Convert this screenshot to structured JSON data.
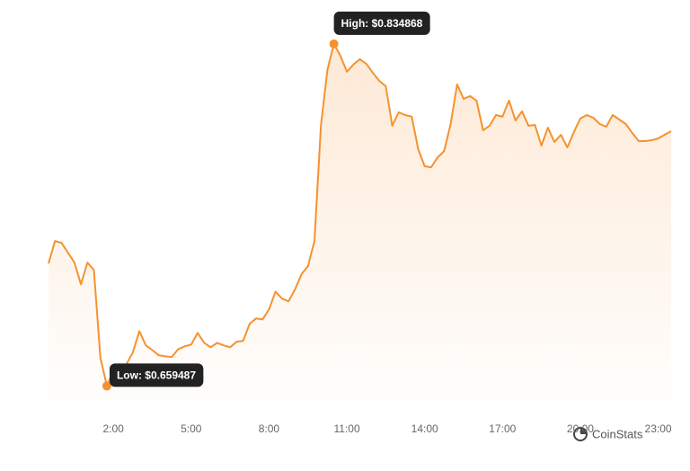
{
  "chart_data": {
    "type": "area-line",
    "color": "#f5922f",
    "x": [
      -0.5,
      -0.25,
      0,
      0.25,
      0.5,
      0.75,
      1,
      1.25,
      1.5,
      1.75,
      2,
      2.25,
      2.5,
      2.75,
      3,
      3.25,
      3.5,
      3.75,
      4,
      4.25,
      4.5,
      4.75,
      5,
      5.25,
      5.5,
      5.75,
      6,
      6.25,
      6.5,
      6.75,
      7,
      7.25,
      7.5,
      7.75,
      8,
      8.25,
      8.5,
      8.75,
      9,
      9.25,
      9.5,
      9.75,
      10,
      10.25,
      10.5,
      10.75,
      11,
      11.25,
      11.5,
      11.75,
      12,
      12.25,
      12.5,
      12.75,
      13,
      13.25,
      13.5,
      13.75,
      14,
      14.25,
      14.5,
      14.75,
      15,
      15.25,
      15.5,
      15.75,
      16,
      16.25,
      16.5,
      16.75,
      17,
      17.25,
      17.5,
      17.75,
      18,
      18.25,
      18.5,
      18.75,
      19,
      19.25,
      19.5,
      19.75,
      20,
      20.25,
      20.5,
      20.75,
      21,
      21.25,
      21.5,
      21.75,
      22,
      22.25,
      22.5,
      22.75,
      23,
      23.25,
      23.5
    ],
    "values": [
      0.7223,
      0.7338,
      0.7329,
      0.7278,
      0.7227,
      0.7116,
      0.7227,
      0.719,
      0.6738,
      0.659487,
      0.6673,
      0.6687,
      0.6706,
      0.6766,
      0.6876,
      0.6803,
      0.6779,
      0.6752,
      0.6747,
      0.6743,
      0.6784,
      0.6798,
      0.6807,
      0.6867,
      0.6816,
      0.6793,
      0.6816,
      0.6803,
      0.6793,
      0.6821,
      0.6826,
      0.6913,
      0.6941,
      0.6936,
      0.6987,
      0.7079,
      0.7043,
      0.7029,
      0.7089,
      0.7167,
      0.7209,
      0.7338,
      0.7929,
      0.8215,
      0.834868,
      0.8289,
      0.8206,
      0.8243,
      0.827,
      0.8247,
      0.8201,
      0.8159,
      0.8132,
      0.7929,
      0.7998,
      0.7984,
      0.7975,
      0.7809,
      0.7721,
      0.7716,
      0.7767,
      0.7799,
      0.7938,
      0.8141,
      0.8067,
      0.8081,
      0.8058,
      0.7906,
      0.7929,
      0.7984,
      0.7975,
      0.8058,
      0.7956,
      0.8003,
      0.7929,
      0.7933,
      0.7827,
      0.7919,
      0.7846,
      0.7883,
      0.7818,
      0.7896,
      0.7966,
      0.7984,
      0.797,
      0.7938,
      0.7924,
      0.7984,
      0.7961,
      0.7938,
      0.7892,
      0.785,
      0.785,
      0.7855,
      0.7864,
      0.7883,
      0.7901
    ],
    "xlim": [
      -0.5,
      23.5
    ],
    "ylim": [
      0.65,
      0.85
    ],
    "xticks": [
      {
        "value": 2,
        "label": "2:00"
      },
      {
        "value": 5,
        "label": "5:00"
      },
      {
        "value": 8,
        "label": "8:00"
      },
      {
        "value": 11,
        "label": "11:00"
      },
      {
        "value": 14,
        "label": "14:00"
      },
      {
        "value": 17,
        "label": "17:00"
      },
      {
        "value": 20,
        "label": "20:00"
      },
      {
        "value": 23,
        "label": "23:00"
      }
    ],
    "high_label": "High: $0.834868",
    "low_label": "Low: $0.659487",
    "watermark": "CoinStats"
  }
}
